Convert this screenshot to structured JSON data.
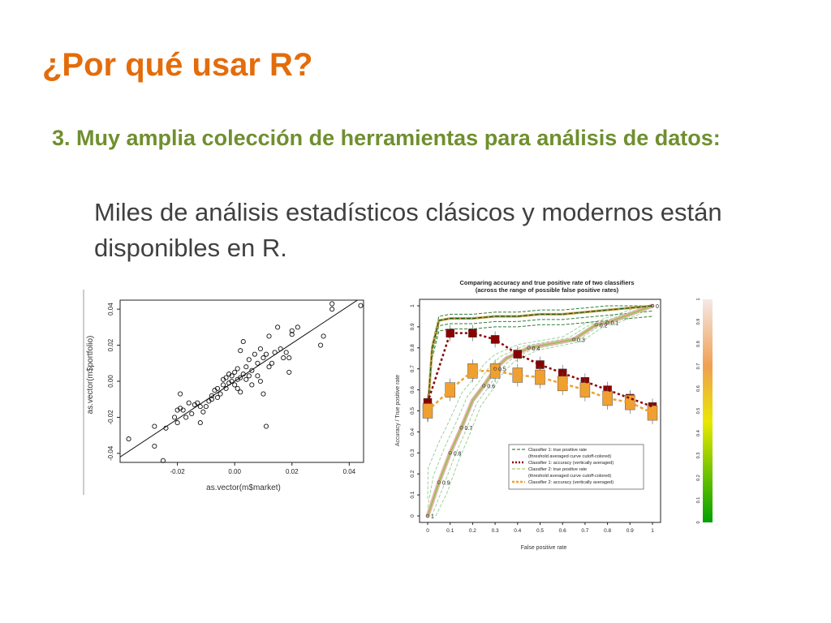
{
  "slide": {
    "title": "¿Por qué usar R?",
    "point": "3. Muy amplia colección de herramientas para análisis de datos:",
    "subpoint": "Miles de análisis estadísticos clásicos y modernos están disponibles en R."
  },
  "colors": {
    "title": "#e46c0a",
    "point": "#6f8f2e",
    "text": "#404040"
  },
  "chart_data": [
    {
      "type": "scatter",
      "title": "",
      "xlabel": "as.vector(m$market)",
      "ylabel": "as.vector(m$portfolio)",
      "xlim": [
        -0.04,
        0.045
      ],
      "ylim": [
        -0.045,
        0.045
      ],
      "x_ticks": [
        "-0.02",
        "0.00",
        "0.02",
        "0.04"
      ],
      "y_ticks": [
        "-0.04",
        "-0.02",
        "0.00",
        "0.02",
        "0.04"
      ],
      "regression_line": {
        "intercept": 0.0,
        "slope": 1.05
      },
      "points": [
        [
          -0.037,
          -0.032
        ],
        [
          -0.028,
          -0.025
        ],
        [
          -0.028,
          -0.036
        ],
        [
          -0.025,
          -0.044
        ],
        [
          -0.024,
          -0.026
        ],
        [
          -0.021,
          -0.02
        ],
        [
          -0.02,
          -0.016
        ],
        [
          -0.02,
          -0.023
        ],
        [
          -0.019,
          -0.015
        ],
        [
          -0.019,
          -0.007
        ],
        [
          -0.018,
          -0.016
        ],
        [
          -0.017,
          -0.02
        ],
        [
          -0.016,
          -0.012
        ],
        [
          -0.015,
          -0.018
        ],
        [
          -0.014,
          -0.013
        ],
        [
          -0.013,
          -0.012
        ],
        [
          -0.012,
          -0.014
        ],
        [
          -0.012,
          -0.023
        ],
        [
          -0.011,
          -0.017
        ],
        [
          -0.01,
          -0.014
        ],
        [
          -0.009,
          -0.011
        ],
        [
          -0.008,
          -0.008
        ],
        [
          -0.008,
          -0.01
        ],
        [
          -0.007,
          -0.005
        ],
        [
          -0.006,
          -0.009
        ],
        [
          -0.006,
          -0.004
        ],
        [
          -0.005,
          -0.007
        ],
        [
          -0.004,
          -0.002
        ],
        [
          -0.004,
          0.001
        ],
        [
          -0.003,
          -0.004
        ],
        [
          -0.003,
          0.002
        ],
        [
          -0.002,
          -0.001
        ],
        [
          -0.002,
          0.004
        ],
        [
          -0.001,
          0.0
        ],
        [
          -0.001,
          0.003
        ],
        [
          0.0,
          -0.002
        ],
        [
          0.0,
          0.005
        ],
        [
          0.001,
          0.001
        ],
        [
          0.001,
          -0.004
        ],
        [
          0.001,
          0.007
        ],
        [
          0.002,
          0.002
        ],
        [
          0.002,
          0.017
        ],
        [
          0.002,
          -0.006
        ],
        [
          0.003,
          0.004
        ],
        [
          0.003,
          0.022
        ],
        [
          0.004,
          0.001
        ],
        [
          0.004,
          0.008
        ],
        [
          0.005,
          0.003
        ],
        [
          0.005,
          0.012
        ],
        [
          0.006,
          -0.002
        ],
        [
          0.006,
          0.006
        ],
        [
          0.007,
          0.015
        ],
        [
          0.008,
          0.003
        ],
        [
          0.008,
          0.01
        ],
        [
          0.009,
          0.018
        ],
        [
          0.009,
          0.0
        ],
        [
          0.01,
          0.013
        ],
        [
          0.01,
          -0.007
        ],
        [
          0.011,
          0.015
        ],
        [
          0.011,
          -0.025
        ],
        [
          0.012,
          0.025
        ],
        [
          0.012,
          0.008
        ],
        [
          0.013,
          0.01
        ],
        [
          0.014,
          0.016
        ],
        [
          0.015,
          0.03
        ],
        [
          0.016,
          0.018
        ],
        [
          0.017,
          0.013
        ],
        [
          0.018,
          0.016
        ],
        [
          0.019,
          0.005
        ],
        [
          0.019,
          0.013
        ],
        [
          0.02,
          0.026
        ],
        [
          0.02,
          0.028
        ],
        [
          0.022,
          0.03
        ],
        [
          0.03,
          0.02
        ],
        [
          0.031,
          0.025
        ],
        [
          0.034,
          0.04
        ],
        [
          0.034,
          0.043
        ],
        [
          0.044,
          0.042
        ]
      ]
    },
    {
      "type": "line",
      "title": "Comparing accuracy and true positive rate of two classifiers",
      "subtitle": "(across the range of possible false positive rates)",
      "xlabel": "False positive rate",
      "ylabel": "Accuracy / True positive rate",
      "xlim": [
        0,
        1
      ],
      "ylim": [
        0,
        1
      ],
      "x_ticks": [
        "0",
        "0.1",
        "0.2",
        "0.3",
        "0.4",
        "0.5",
        "0.6",
        "0.7",
        "0.8",
        "0.9",
        "1"
      ],
      "y_ticks": [
        "0",
        "0.1",
        "0.2",
        "0.3",
        "0.4",
        "0.5",
        "0.6",
        "0.7",
        "0.8",
        "0.9",
        "1"
      ],
      "colorbar_ticks": [
        "0",
        "0.1",
        "0.2",
        "0.3",
        "0.4",
        "0.5",
        "0.6",
        "0.7",
        "0.8",
        "0.9",
        "1"
      ],
      "legend": [
        "Classifier 1: true positive rate",
        "(threshold averaged curve cutoff-colored)",
        "Classifier 1: accuracy (vertically averaged)",
        "Classifier 2: true positive rate",
        "(threshold averaged curve cutoff-colored)",
        "Classifier 2: accuracy (vertically averaged)"
      ],
      "series": [
        {
          "name": "Classifier 1: true positive rate",
          "x": [
            0.0,
            0.02,
            0.05,
            0.1,
            0.2,
            0.3,
            0.4,
            0.5,
            0.6,
            0.7,
            0.8,
            0.9,
            1.0
          ],
          "y": [
            0.5,
            0.8,
            0.93,
            0.94,
            0.94,
            0.95,
            0.95,
            0.96,
            0.96,
            0.97,
            0.98,
            0.99,
            1.0
          ],
          "color": "#1b5e20"
        },
        {
          "name": "Classifier 1: accuracy (vertically averaged)",
          "x": [
            0.0,
            0.1,
            0.2,
            0.3,
            0.4,
            0.5,
            0.6,
            0.7,
            0.8,
            0.9,
            1.0
          ],
          "y": [
            0.54,
            0.87,
            0.87,
            0.84,
            0.77,
            0.72,
            0.68,
            0.64,
            0.6,
            0.56,
            0.52
          ],
          "color": "#8b0000"
        },
        {
          "name": "Classifier 2: true positive rate",
          "x": [
            0.0,
            0.05,
            0.1,
            0.15,
            0.2,
            0.25,
            0.3,
            0.35,
            0.45,
            0.65,
            0.75,
            0.8,
            0.9,
            1.0
          ],
          "y": [
            0.0,
            0.16,
            0.3,
            0.42,
            0.55,
            0.62,
            0.7,
            0.75,
            0.8,
            0.84,
            0.91,
            0.92,
            0.96,
            1.0
          ],
          "color": "#f2a8a8",
          "labels": [
            "1",
            "0.9",
            "0.8",
            "0.7",
            "0.6",
            "0.5",
            "0.4",
            "0.3",
            "0.2",
            "0.1",
            "0"
          ]
        },
        {
          "name": "Classifier 2: accuracy (vertically averaged)",
          "x": [
            0.0,
            0.1,
            0.2,
            0.3,
            0.4,
            0.5,
            0.6,
            0.7,
            0.8,
            0.9,
            1.0
          ],
          "y": [
            0.5,
            0.6,
            0.69,
            0.69,
            0.67,
            0.66,
            0.63,
            0.6,
            0.56,
            0.54,
            0.49
          ],
          "color": "#f0a030"
        }
      ]
    }
  ]
}
